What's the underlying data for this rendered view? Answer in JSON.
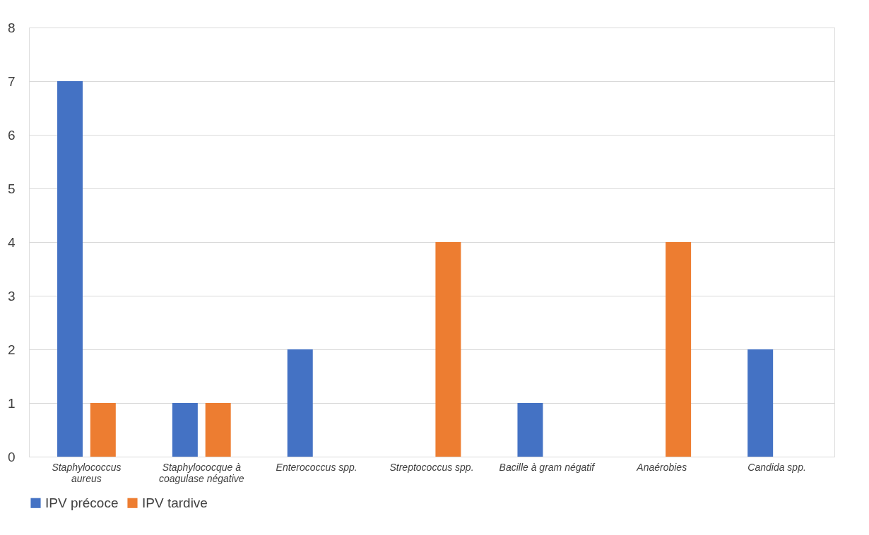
{
  "chart_data": {
    "type": "bar",
    "categories": [
      "Staphylococcus\naureus",
      "Staphylococque à\ncoagulase négative",
      "Enterococcus spp.",
      "Streptococcus spp.",
      "Bacille à gram négatif",
      "Anaérobies",
      "Candida spp."
    ],
    "series": [
      {
        "name": "IPV précoce",
        "color": "#4472c4",
        "values": [
          7,
          1,
          2,
          0,
          1,
          0,
          2
        ]
      },
      {
        "name": "IPV tardive",
        "color": "#ed7d31",
        "values": [
          1,
          1,
          0,
          4,
          0,
          4,
          0
        ]
      }
    ],
    "ylim": [
      0,
      8
    ],
    "yticks": [
      0,
      1,
      2,
      3,
      4,
      5,
      6,
      7,
      8
    ],
    "grid": "y",
    "legend": "bottom"
  }
}
